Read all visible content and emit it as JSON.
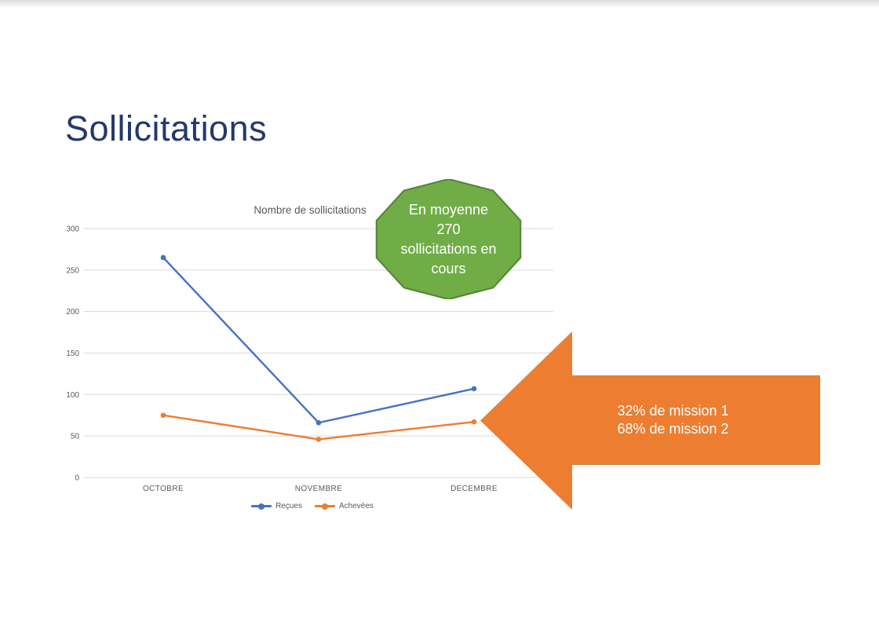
{
  "page": {
    "title": "Sollicitations"
  },
  "theme": {
    "title_color": "#24386B",
    "text_gray": "#595959",
    "grid_color": "#D9D9D9",
    "background": "#FFFFFF"
  },
  "chart_data": {
    "type": "line",
    "title": "Nombre de sollicitations",
    "categories": [
      "OCTOBRE",
      "NOVEMBRE",
      "DECEMBRE"
    ],
    "series": [
      {
        "name": "Reçues",
        "color": "#4472C4",
        "values": [
          265,
          66,
          107
        ]
      },
      {
        "name": "Achevées",
        "color": "#ED7D31",
        "values": [
          75,
          46,
          67
        ]
      }
    ],
    "xlabel": "",
    "ylabel": "",
    "ylim": [
      0,
      300
    ],
    "yticks": [
      0,
      50,
      100,
      150,
      200,
      250,
      300
    ],
    "grid": true,
    "legend_position": "bottom"
  },
  "callouts": {
    "average_note": {
      "text": "En moyenne\n270\nsollicitations en\ncours",
      "fill": "#70AD47",
      "border": "#548235"
    },
    "missions_note": {
      "text": "32% de mission 1\n68% de mission 2",
      "fill": "#ED7D31",
      "border": "#BE8850"
    }
  }
}
